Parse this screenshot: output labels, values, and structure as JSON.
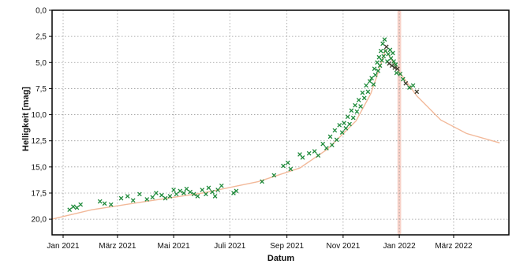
{
  "chart_data": {
    "type": "scatter",
    "title": "",
    "xlabel": "Datum",
    "ylabel": "Helligkeit [mag]",
    "x_ticks": [
      "2021-01-01",
      "2021-03-01",
      "2021-05-01",
      "2021-07-01",
      "2021-09-01",
      "2021-11-01",
      "2022-01-01",
      "2022-03-01"
    ],
    "x_tick_labels": [
      "Jan 2021",
      "März 2021",
      "Mai 2021",
      "Juli 2021",
      "Sep 2021",
      "Nov 2021",
      "Jan 2022",
      "März 2022"
    ],
    "xlim": [
      "2020-12-20",
      "2022-04-30"
    ],
    "y_ticks": [
      0,
      2.5,
      5,
      7.5,
      10,
      12.5,
      15,
      17.5,
      20
    ],
    "y_tick_labels": [
      "0,0",
      "2,5",
      "5,0",
      "7,5",
      "10,0",
      "12,5",
      "15,0",
      "17,5",
      "20,0"
    ],
    "ylim": [
      0,
      21.5
    ],
    "y_inverted": true,
    "grid": true,
    "colors": {
      "observations": "#1e8a3a",
      "dark_observations": "#3a3a2a",
      "fit_curve": "#f2b99a",
      "highlight_band": "#f6c7bb"
    },
    "highlight_band_range": [
      "2021-12-30",
      "2022-01-03"
    ],
    "series": [
      {
        "kind": "curve",
        "x": [
          "2020-12-20",
          "2021-02-01",
          "2021-04-01",
          "2021-06-01",
          "2021-08-01",
          "2021-09-15",
          "2021-10-15",
          "2021-11-15",
          "2021-12-01",
          "2021-12-10",
          "2021-12-17",
          "2022-01-01",
          "2022-01-20",
          "2022-02-15",
          "2022-03-15",
          "2022-04-20"
        ],
        "y": [
          20.0,
          19.1,
          18.3,
          17.5,
          16.4,
          15.1,
          13.3,
          10.6,
          8.0,
          5.7,
          3.8,
          5.9,
          8.2,
          10.5,
          11.8,
          12.7
        ]
      },
      {
        "kind": "points",
        "x": [
          "2021-01-08",
          "2021-01-12",
          "2021-01-16",
          "2021-01-20",
          "2021-02-10",
          "2021-02-15",
          "2021-02-22",
          "2021-03-05",
          "2021-03-12",
          "2021-03-18",
          "2021-03-25",
          "2021-04-02",
          "2021-04-08",
          "2021-04-12",
          "2021-04-18",
          "2021-04-22",
          "2021-04-27",
          "2021-05-01",
          "2021-05-04",
          "2021-05-08",
          "2021-05-12",
          "2021-05-15",
          "2021-05-19",
          "2021-05-23",
          "2021-05-27",
          "2021-06-01",
          "2021-06-05",
          "2021-06-08",
          "2021-06-12",
          "2021-06-15",
          "2021-06-18",
          "2021-06-22",
          "2021-07-05",
          "2021-07-08",
          "2021-08-05",
          "2021-08-18",
          "2021-08-28",
          "2021-09-02",
          "2021-09-05",
          "2021-09-15",
          "2021-09-18",
          "2021-09-25",
          "2021-10-01",
          "2021-10-05",
          "2021-10-10",
          "2021-10-14",
          "2021-10-18",
          "2021-10-20",
          "2021-10-23",
          "2021-10-25",
          "2021-10-28",
          "2021-10-31",
          "2021-11-02",
          "2021-11-04",
          "2021-11-06",
          "2021-11-08",
          "2021-11-10",
          "2021-11-12",
          "2021-11-14",
          "2021-11-16",
          "2021-11-18",
          "2021-11-20",
          "2021-11-22",
          "2021-11-24",
          "2021-11-26",
          "2021-11-28",
          "2021-11-30",
          "2021-12-02",
          "2021-12-04",
          "2021-12-05",
          "2021-12-06",
          "2021-12-08",
          "2021-12-09",
          "2021-12-10",
          "2021-12-11",
          "2021-12-12",
          "2021-12-13",
          "2021-12-14",
          "2021-12-15",
          "2021-12-16",
          "2021-12-17",
          "2021-12-18",
          "2021-12-19",
          "2021-12-20",
          "2021-12-21",
          "2021-12-22",
          "2021-12-23",
          "2021-12-24",
          "2021-12-25",
          "2021-12-26",
          "2021-12-27",
          "2021-12-28",
          "2021-12-29",
          "2021-12-30",
          "2022-01-02",
          "2022-01-05",
          "2022-01-08",
          "2022-01-12",
          "2022-01-16",
          "2022-01-20"
        ],
        "y": [
          19.1,
          18.8,
          18.9,
          18.6,
          18.3,
          18.5,
          18.6,
          18.0,
          17.8,
          18.2,
          17.6,
          18.1,
          17.9,
          17.5,
          17.7,
          18.0,
          17.8,
          17.2,
          17.6,
          17.3,
          17.5,
          17.1,
          17.4,
          17.6,
          17.8,
          17.2,
          17.6,
          17.0,
          17.4,
          17.8,
          17.2,
          16.8,
          17.5,
          17.3,
          16.4,
          15.8,
          14.9,
          14.6,
          15.2,
          13.8,
          14.1,
          13.7,
          13.5,
          13.9,
          12.8,
          13.2,
          12.1,
          12.9,
          11.5,
          12.4,
          11.0,
          11.7,
          10.8,
          11.3,
          10.2,
          10.9,
          9.6,
          10.3,
          9.1,
          9.7,
          8.6,
          9.2,
          7.9,
          8.4,
          7.2,
          7.8,
          6.8,
          6.5,
          7.1,
          5.6,
          6.2,
          5.0,
          5.8,
          4.5,
          5.3,
          3.9,
          4.8,
          3.2,
          4.4,
          2.8,
          3.9,
          3.5,
          4.9,
          4.2,
          5.1,
          3.8,
          4.6,
          5.3,
          4.1,
          4.9,
          5.5,
          5.2,
          6.0,
          5.6,
          6.1,
          6.6,
          7.0,
          7.4,
          7.2,
          7.8
        ]
      }
    ]
  }
}
